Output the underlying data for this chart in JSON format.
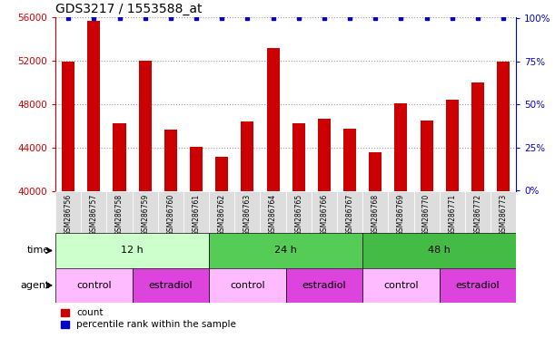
{
  "title": "GDS3217 / 1553588_at",
  "samples": [
    "GSM286756",
    "GSM286757",
    "GSM286758",
    "GSM286759",
    "GSM286760",
    "GSM286761",
    "GSM286762",
    "GSM286763",
    "GSM286764",
    "GSM286765",
    "GSM286766",
    "GSM286767",
    "GSM286768",
    "GSM286769",
    "GSM286770",
    "GSM286771",
    "GSM286772",
    "GSM286773"
  ],
  "counts": [
    51900,
    55700,
    46300,
    52000,
    45700,
    44100,
    43200,
    46400,
    53200,
    46300,
    46700,
    45800,
    43600,
    48100,
    46500,
    48400,
    50000,
    51900
  ],
  "ylim": [
    40000,
    56000
  ],
  "yticks": [
    40000,
    44000,
    48000,
    52000,
    56000
  ],
  "right_yticks": [
    0,
    25,
    50,
    75,
    100
  ],
  "bar_color": "#cc0000",
  "dot_color": "#0000cc",
  "time_groups": [
    {
      "label": "12 h",
      "start": 0,
      "end": 6,
      "color": "#ccffcc"
    },
    {
      "label": "24 h",
      "start": 6,
      "end": 12,
      "color": "#55cc55"
    },
    {
      "label": "48 h",
      "start": 12,
      "end": 18,
      "color": "#44bb44"
    }
  ],
  "agent_groups": [
    {
      "label": "control",
      "start": 0,
      "end": 3,
      "color": "#ffbbff"
    },
    {
      "label": "estradiol",
      "start": 3,
      "end": 6,
      "color": "#dd44dd"
    },
    {
      "label": "control",
      "start": 6,
      "end": 9,
      "color": "#ffbbff"
    },
    {
      "label": "estradiol",
      "start": 9,
      "end": 12,
      "color": "#dd44dd"
    },
    {
      "label": "control",
      "start": 12,
      "end": 15,
      "color": "#ffbbff"
    },
    {
      "label": "estradiol",
      "start": 15,
      "end": 18,
      "color": "#dd44dd"
    }
  ],
  "legend_count_color": "#cc0000",
  "legend_pct_color": "#0000cc",
  "grid_color": "#999999",
  "background_color": "#ffffff",
  "tick_label_color_left": "#cc0000",
  "tick_label_color_right": "#0000cc",
  "title_fontsize": 10,
  "bar_width": 0.5,
  "xlabel_rotation": 90,
  "xlabel_fontsize": 6
}
